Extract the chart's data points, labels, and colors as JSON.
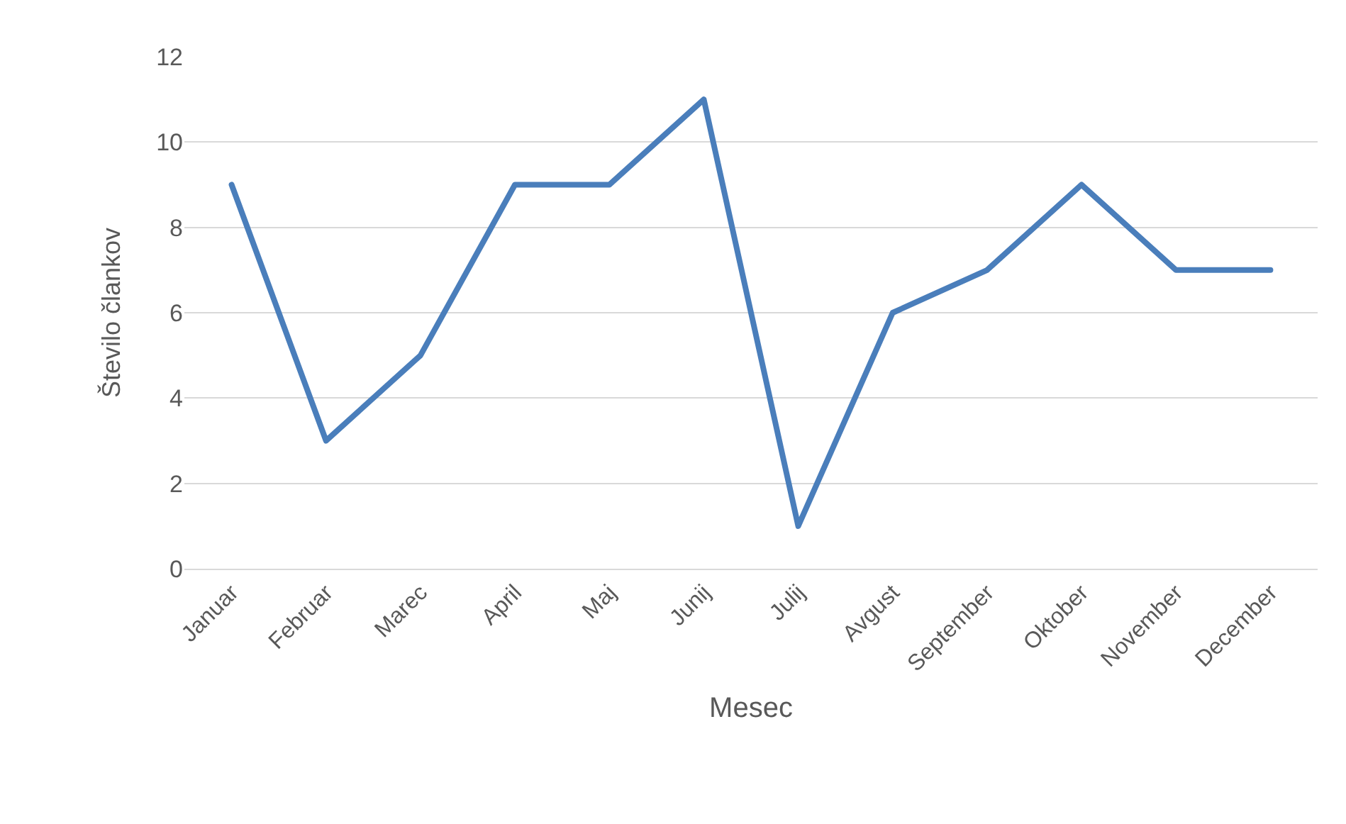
{
  "chart_data": {
    "type": "line",
    "xlabel": "Mesec",
    "ylabel": "Število člankov",
    "categories": [
      "Januar",
      "Februar",
      "Marec",
      "April",
      "Maj",
      "Junij",
      "Julij",
      "Avgust",
      "September",
      "Oktober",
      "November",
      "December"
    ],
    "series": [
      {
        "color": "#4a7ebb",
        "values": [
          9,
          3,
          5,
          9,
          9,
          11,
          1,
          6,
          7,
          9,
          7,
          7
        ]
      }
    ],
    "ylim": [
      0,
      12
    ],
    "yticks": [
      0,
      2,
      4,
      6,
      8,
      10,
      12
    ],
    "grid": "y",
    "marker": "none",
    "line_style": "solid"
  }
}
